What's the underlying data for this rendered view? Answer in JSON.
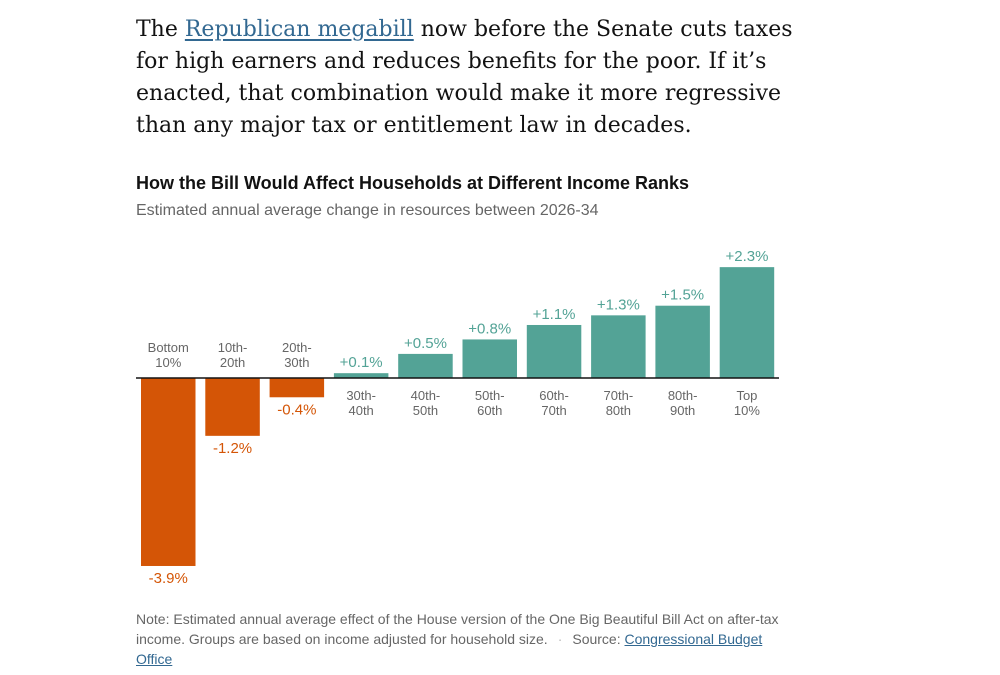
{
  "article": {
    "lead": "The ",
    "link_text": "Republican megabill",
    "rest": " now before the Senate cuts taxes for high earners and reduces benefits for the poor. If it’s enacted, that combination would make it more regressive than any major tax or entitlement law in decades."
  },
  "chart_data": {
    "type": "bar",
    "title": "How the Bill Would Affect Households at Different Income Ranks",
    "subtitle": "Estimated annual average change in resources between 2026-34",
    "categories": [
      [
        "Bottom",
        "10%"
      ],
      [
        "10th-",
        "20th"
      ],
      [
        "20th-",
        "30th"
      ],
      [
        "30th-",
        "40th"
      ],
      [
        "40th-",
        "50th"
      ],
      [
        "50th-",
        "60th"
      ],
      [
        "60th-",
        "70th"
      ],
      [
        "70th-",
        "80th"
      ],
      [
        "80th-",
        "90th"
      ],
      [
        "Top",
        "10%"
      ]
    ],
    "values": [
      -3.9,
      -1.2,
      -0.4,
      0.1,
      0.5,
      0.8,
      1.1,
      1.3,
      1.5,
      2.3
    ],
    "value_labels": [
      "-3.9%",
      "-1.2%",
      "-0.4%",
      "+0.1%",
      "+0.5%",
      "+0.8%",
      "+1.1%",
      "+1.3%",
      "+1.5%",
      "+2.3%"
    ],
    "xlabel": "",
    "ylabel": "",
    "ylim": [
      -3.9,
      2.3
    ],
    "colors": {
      "positive": "#53a396",
      "negative": "#d45506",
      "axis": "#121212",
      "category_label": "#666666"
    }
  },
  "footer": {
    "note": "Note: Estimated annual average effect of the House version of the One Big Beautiful Bill Act on after-tax income. Groups are based on income adjusted for household size.",
    "separator": "·",
    "source_label": "Source: ",
    "source_link": "Congressional Budget Office"
  }
}
